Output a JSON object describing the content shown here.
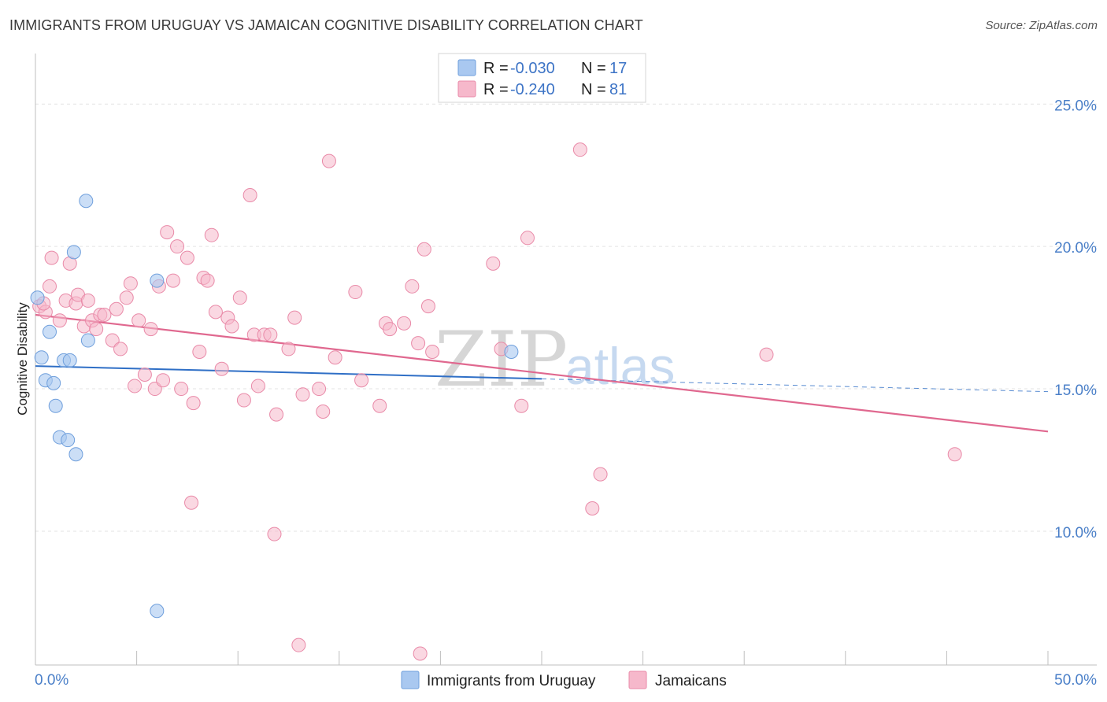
{
  "header": {
    "title": "IMMIGRANTS FROM URUGUAY VS JAMAICAN COGNITIVE DISABILITY CORRELATION CHART",
    "source": "Source: ZipAtlas.com"
  },
  "watermark": {
    "zip": "ZIP",
    "atlas": "atlas"
  },
  "legend_top": {
    "rows": [
      {
        "r_label": "R =",
        "r_value": "-0.030",
        "n_label": "N =",
        "n_value": "17",
        "color": "#a9c8f0"
      },
      {
        "r_label": "R =",
        "r_value": "-0.240",
        "n_label": "N =",
        "n_value": "81",
        "color": "#f6b8cb"
      }
    ]
  },
  "legend_bottom": {
    "items": [
      {
        "label": "Immigrants from Uruguay",
        "color": "#a9c8f0"
      },
      {
        "label": "Jamaicans",
        "color": "#f6b8cb"
      }
    ]
  },
  "chart_data": {
    "type": "scatter",
    "title": "IMMIGRANTS FROM URUGUAY VS JAMAICAN COGNITIVE DISABILITY CORRELATION CHART",
    "xlabel": "",
    "ylabel": "Cognitive Disability",
    "xlim": [
      0,
      50
    ],
    "ylim": [
      5.3,
      26.5
    ],
    "x_tick_labels": [
      "0.0%",
      "50.0%"
    ],
    "y_ticks": [
      10,
      15,
      20,
      25
    ],
    "y_tick_labels": [
      "10.0%",
      "15.0%",
      "20.0%",
      "25.0%"
    ],
    "grid": true,
    "legend_position": "top-center",
    "colors": {
      "uruguay_point": "#a9c8f0",
      "uruguay_edge": "#6f9fdc",
      "uruguay_line": "#2f6fc6",
      "jamaica_point": "#f6b8cb",
      "jamaica_edge": "#e98aa8",
      "jamaica_line": "#e0688f"
    },
    "series": [
      {
        "name": "Immigrants from Uruguay",
        "points": [
          [
            0.1,
            18.2
          ],
          [
            0.3,
            16.1
          ],
          [
            0.5,
            15.3
          ],
          [
            0.7,
            17.0
          ],
          [
            0.9,
            15.2
          ],
          [
            1.0,
            14.4
          ],
          [
            1.2,
            13.3
          ],
          [
            1.4,
            16.0
          ],
          [
            1.6,
            13.2
          ],
          [
            1.7,
            16.0
          ],
          [
            1.9,
            19.8
          ],
          [
            2.0,
            12.7
          ],
          [
            2.5,
            21.6
          ],
          [
            2.6,
            16.7
          ],
          [
            6.0,
            18.8
          ],
          [
            6.0,
            7.2
          ],
          [
            23.5,
            16.3
          ]
        ],
        "trend": {
          "x0": 0,
          "y0": 15.8,
          "x1": 25,
          "y1": 15.35,
          "dash_x1": 50,
          "dash_y1": 14.9
        }
      },
      {
        "name": "Jamaicans",
        "points": [
          [
            0.2,
            17.9
          ],
          [
            0.5,
            17.7
          ],
          [
            0.7,
            18.6
          ],
          [
            0.8,
            19.6
          ],
          [
            1.2,
            17.4
          ],
          [
            1.5,
            18.1
          ],
          [
            1.7,
            19.4
          ],
          [
            2.0,
            18.0
          ],
          [
            2.1,
            18.3
          ],
          [
            2.4,
            17.2
          ],
          [
            2.6,
            18.1
          ],
          [
            2.8,
            17.4
          ],
          [
            3.0,
            17.1
          ],
          [
            3.2,
            17.6
          ],
          [
            3.4,
            17.6
          ],
          [
            3.8,
            16.7
          ],
          [
            4.0,
            17.8
          ],
          [
            4.2,
            16.4
          ],
          [
            4.5,
            18.2
          ],
          [
            4.7,
            18.7
          ],
          [
            4.9,
            15.1
          ],
          [
            5.1,
            17.4
          ],
          [
            5.4,
            15.5
          ],
          [
            5.7,
            17.1
          ],
          [
            5.9,
            15.0
          ],
          [
            6.1,
            18.6
          ],
          [
            6.3,
            15.3
          ],
          [
            6.5,
            20.5
          ],
          [
            6.8,
            18.8
          ],
          [
            7.0,
            20.0
          ],
          [
            7.2,
            15.0
          ],
          [
            7.5,
            19.6
          ],
          [
            7.8,
            14.5
          ],
          [
            7.7,
            11.0
          ],
          [
            8.1,
            16.3
          ],
          [
            8.3,
            18.9
          ],
          [
            8.5,
            18.8
          ],
          [
            8.7,
            20.4
          ],
          [
            8.9,
            17.7
          ],
          [
            9.2,
            15.7
          ],
          [
            9.5,
            17.5
          ],
          [
            9.7,
            17.2
          ],
          [
            10.1,
            18.2
          ],
          [
            10.3,
            14.6
          ],
          [
            10.6,
            21.8
          ],
          [
            10.8,
            16.9
          ],
          [
            11.0,
            15.1
          ],
          [
            11.3,
            16.9
          ],
          [
            11.6,
            16.9
          ],
          [
            11.8,
            9.9
          ],
          [
            11.9,
            14.1
          ],
          [
            12.5,
            16.4
          ],
          [
            12.8,
            17.5
          ],
          [
            13.0,
            6.0
          ],
          [
            13.2,
            14.8
          ],
          [
            14.0,
            15.0
          ],
          [
            14.2,
            14.2
          ],
          [
            14.5,
            23.0
          ],
          [
            14.8,
            16.1
          ],
          [
            15.8,
            18.4
          ],
          [
            16.1,
            15.3
          ],
          [
            17.0,
            14.4
          ],
          [
            17.3,
            17.3
          ],
          [
            17.5,
            17.1
          ],
          [
            18.2,
            17.3
          ],
          [
            18.6,
            18.6
          ],
          [
            18.9,
            16.6
          ],
          [
            19.2,
            19.9
          ],
          [
            19.4,
            17.9
          ],
          [
            19.6,
            16.3
          ],
          [
            22.6,
            19.4
          ],
          [
            23.0,
            16.4
          ],
          [
            24.0,
            14.4
          ],
          [
            24.3,
            20.3
          ],
          [
            19.0,
            5.7
          ],
          [
            26.9,
            23.4
          ],
          [
            27.5,
            10.8
          ],
          [
            27.9,
            12.0
          ],
          [
            36.1,
            16.2
          ],
          [
            45.4,
            12.7
          ],
          [
            0.4,
            18.0
          ]
        ],
        "trend": {
          "x0": 0,
          "y0": 17.6,
          "x1": 50,
          "y1": 13.5
        }
      }
    ]
  }
}
